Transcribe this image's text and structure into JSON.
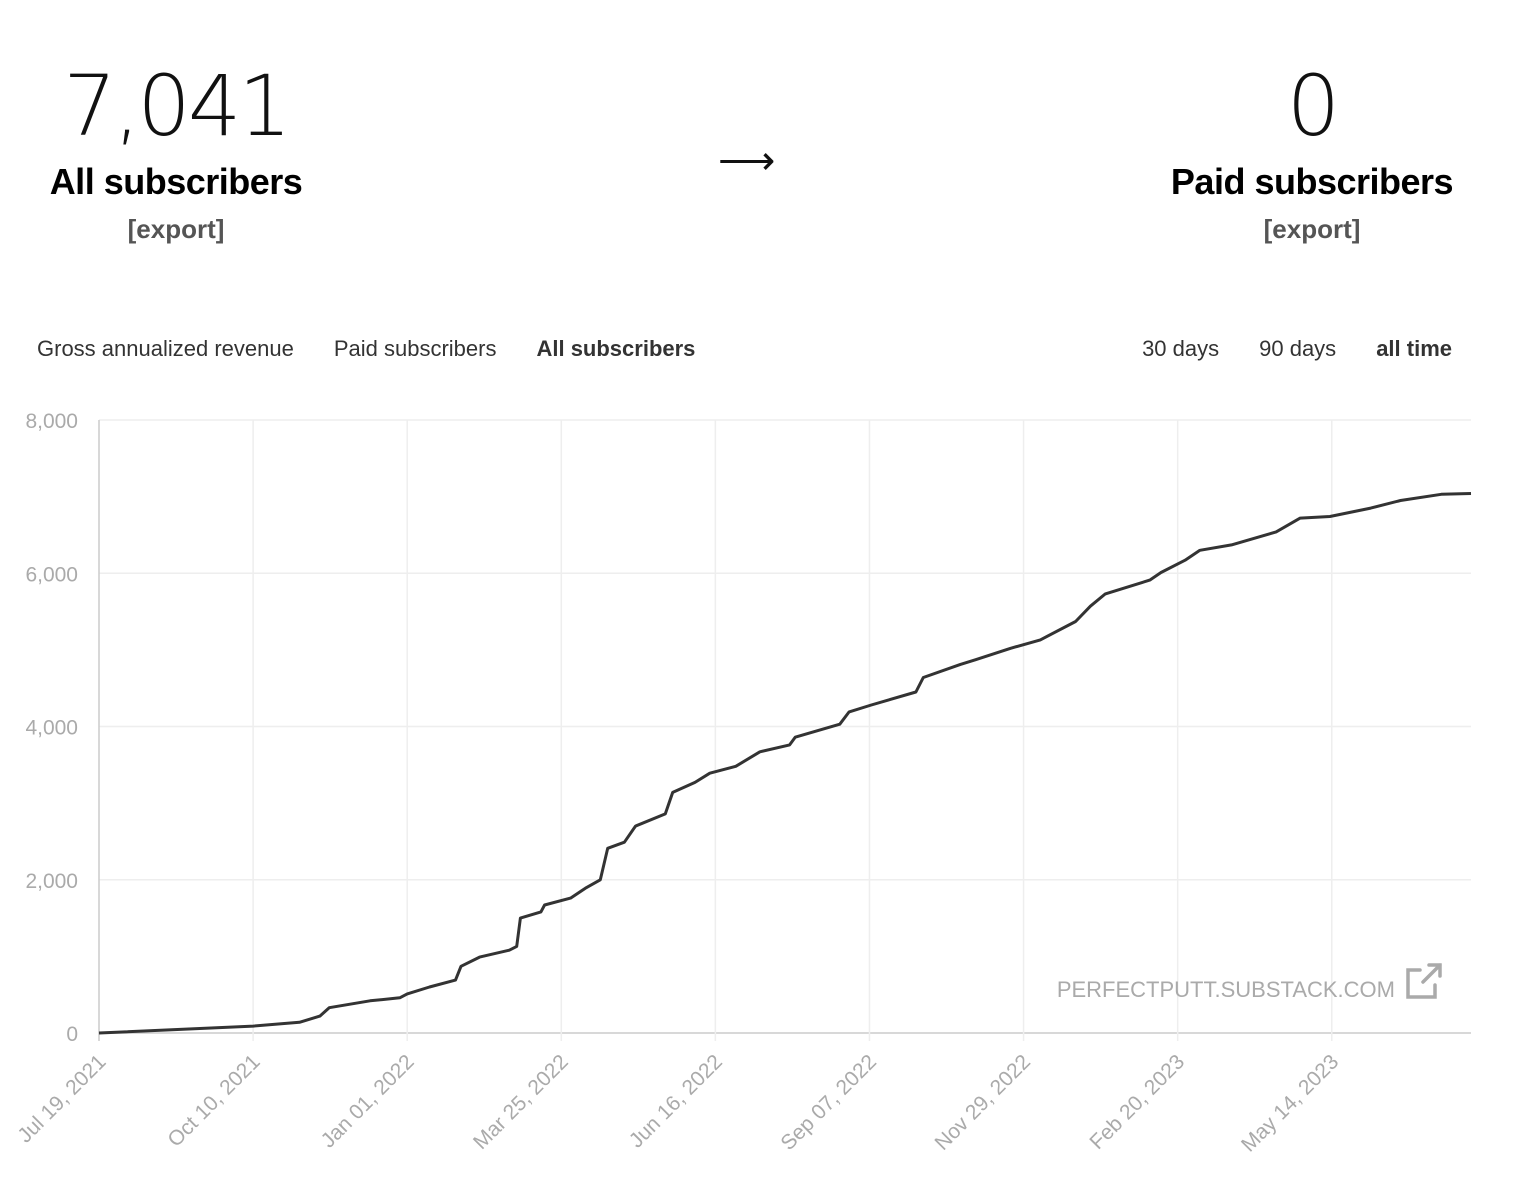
{
  "stats": {
    "all": {
      "value": "7,041",
      "label": "All subscribers",
      "export": "[export]"
    },
    "arrow": "⟶",
    "paid": {
      "value": "0",
      "label": "Paid subscribers",
      "export": "[export]"
    }
  },
  "metric_tabs": [
    {
      "label": "Gross annualized revenue",
      "active": false
    },
    {
      "label": "Paid subscribers",
      "active": false
    },
    {
      "label": "All subscribers",
      "active": true
    }
  ],
  "range_tabs": [
    {
      "label": "30 days",
      "active": false
    },
    {
      "label": "90 days",
      "active": false
    },
    {
      "label": "all time",
      "active": true
    }
  ],
  "watermark": "PERFECTPUTT.SUBSTACK.COM",
  "chart_data": {
    "type": "line",
    "title": "All subscribers",
    "xlabel": "",
    "ylabel": "",
    "x_unit": "days since Jul 19, 2021",
    "xlim": [
      0,
      739
    ],
    "ylim": [
      0,
      8000
    ],
    "yticks": [
      0,
      2000,
      4000,
      6000,
      8000
    ],
    "ytick_labels": [
      "0",
      "2,000",
      "4,000",
      "6,000",
      "8,000"
    ],
    "xticks": [
      0,
      83,
      166,
      249,
      332,
      415,
      498,
      581,
      664
    ],
    "xtick_labels": [
      "Jul 19, 2021",
      "Oct 10, 2021",
      "Jan 01, 2022",
      "Mar 25, 2022",
      "Jun 16, 2022",
      "Sep 07, 2022",
      "Nov 29, 2022",
      "Feb 20, 2023",
      "May 14, 2023"
    ],
    "grid": true,
    "line_color": "#333333",
    "series": [
      {
        "name": "All subscribers",
        "x": [
          0,
          83,
          108,
          119,
          124,
          146,
          162,
          166,
          178,
          192,
          195,
          205,
          221,
          225,
          227,
          238,
          240,
          254,
          262,
          270,
          274,
          283,
          289,
          305,
          309,
          321,
          329,
          343,
          356,
          372,
          375,
          399,
          404,
          416,
          440,
          444,
          464,
          472,
          491,
          507,
          526,
          534,
          542,
          566,
          572,
          585,
          593,
          610,
          634,
          647,
          663,
          685,
          701,
          723,
          739
        ],
        "y": [
          0,
          90,
          140,
          220,
          330,
          420,
          460,
          510,
          600,
          690,
          870,
          990,
          1080,
          1130,
          1500,
          1580,
          1670,
          1760,
          1890,
          2000,
          2410,
          2490,
          2700,
          2860,
          3140,
          3270,
          3390,
          3480,
          3670,
          3760,
          3860,
          4030,
          4190,
          4280,
          4450,
          4640,
          4810,
          4870,
          5020,
          5130,
          5370,
          5570,
          5730,
          5910,
          6010,
          6170,
          6300,
          6370,
          6540,
          6720,
          6740,
          6850,
          6950,
          7030,
          7041
        ]
      }
    ]
  }
}
